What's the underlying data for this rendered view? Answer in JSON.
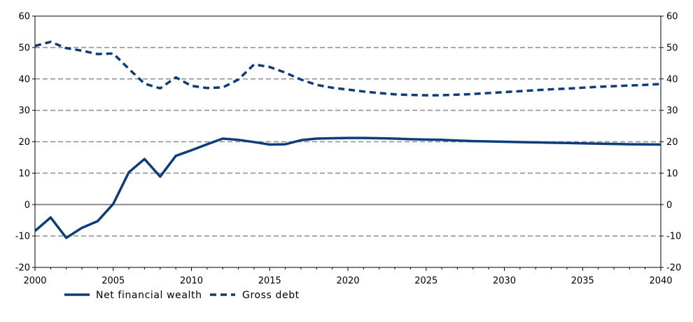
{
  "chart_data": {
    "type": "line",
    "title": "",
    "xlabel": "",
    "ylabel": "",
    "xlim": [
      2000,
      2040
    ],
    "ylim": [
      -20,
      60
    ],
    "x_ticks": [
      2000,
      2005,
      2010,
      2015,
      2020,
      2025,
      2030,
      2035,
      2040
    ],
    "y_ticks": [
      -20,
      -10,
      0,
      10,
      20,
      30,
      40,
      50,
      60
    ],
    "y_ticks_right": [
      -20,
      -10,
      0,
      10,
      20,
      30,
      40,
      50,
      60
    ],
    "grid": "horizontal dashed",
    "legend_position": "bottom-left",
    "colors": {
      "series": "#0b3d7c",
      "grid": "#8c8c8c",
      "axis": "#000000"
    },
    "series": [
      {
        "name": "Net financial wealth",
        "style": "solid",
        "x": [
          2000,
          2001,
          2002,
          2003,
          2004,
          2005,
          2006,
          2007,
          2008,
          2009,
          2010,
          2011,
          2012,
          2013,
          2014,
          2015,
          2016,
          2017,
          2018,
          2019,
          2020,
          2021,
          2022,
          2023,
          2024,
          2025,
          2026,
          2027,
          2028,
          2029,
          2030,
          2031,
          2032,
          2033,
          2034,
          2035,
          2036,
          2037,
          2038,
          2039,
          2040
        ],
        "values": [
          -8.4,
          -4.1,
          -10.6,
          -7.4,
          -5.3,
          0.2,
          10.3,
          14.5,
          8.9,
          15.5,
          17.3,
          19.2,
          21.0,
          20.6,
          19.9,
          19.1,
          19.2,
          20.5,
          21.0,
          21.1,
          21.2,
          21.2,
          21.1,
          21.0,
          20.8,
          20.7,
          20.6,
          20.4,
          20.2,
          20.1,
          20.0,
          19.9,
          19.8,
          19.7,
          19.6,
          19.5,
          19.4,
          19.3,
          19.2,
          19.15,
          19.1
        ]
      },
      {
        "name": "Gross debt",
        "style": "dashed",
        "x": [
          2000,
          2001,
          2002,
          2003,
          2004,
          2005,
          2006,
          2007,
          2008,
          2009,
          2010,
          2011,
          2012,
          2013,
          2014,
          2015,
          2016,
          2017,
          2018,
          2019,
          2020,
          2021,
          2022,
          2023,
          2024,
          2025,
          2026,
          2027,
          2028,
          2029,
          2030,
          2031,
          2032,
          2033,
          2034,
          2035,
          2036,
          2037,
          2038,
          2039,
          2040
        ],
        "values": [
          50.5,
          51.8,
          49.8,
          49.0,
          47.9,
          48.1,
          43.2,
          38.5,
          37.0,
          40.5,
          37.8,
          37.1,
          37.3,
          39.8,
          44.6,
          43.8,
          42.0,
          39.8,
          38.1,
          37.2,
          36.6,
          36.0,
          35.5,
          35.1,
          34.9,
          34.8,
          34.8,
          35.0,
          35.2,
          35.5,
          35.8,
          36.1,
          36.4,
          36.7,
          36.9,
          37.2,
          37.5,
          37.7,
          37.9,
          38.1,
          38.4
        ]
      }
    ]
  }
}
